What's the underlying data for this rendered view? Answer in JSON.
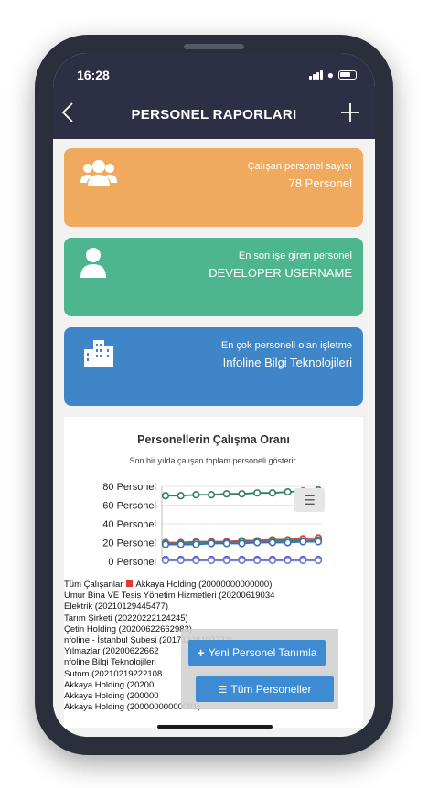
{
  "status_bar": {
    "time": "16:28"
  },
  "nav": {
    "title": "PERSONEL RAPORLARI",
    "back_icon": "chevron-left-icon",
    "add_icon": "plus-icon"
  },
  "cards": {
    "employees": {
      "label": "Çalışan personel sayısı",
      "value": "78 Personel",
      "icon": "users-icon",
      "color": "#f0aa5e"
    },
    "newest": {
      "label": "En son işe giren personel",
      "value": "DEVELOPER USERNAME",
      "icon": "user-icon",
      "color": "#4db68e"
    },
    "top_company": {
      "label": "En çok personeli olan işletme",
      "value": "Infoline Bilgi Teknolojileri",
      "icon": "buildings-icon",
      "color": "#3f86c8"
    }
  },
  "chart": {
    "title": "Personellerin Çalışma Oranı",
    "subtitle": "Son bir yılda çalışan toplam personeli gösterir.",
    "menu_icon": "hamburger-menu-icon"
  },
  "chart_data": {
    "type": "line",
    "yaxis_ticks": [
      "80 Personel",
      "60 Personel",
      "40 Personel",
      "20 Personel",
      "0 Personel"
    ],
    "ylim": [
      0,
      80
    ],
    "grid": true,
    "legend_placement": "bottom",
    "series": [
      {
        "name": "Tüm Çalışanlar",
        "color": "#2e7d64",
        "values": [
          70,
          70,
          71,
          71,
          72,
          72,
          73,
          73,
          74,
          75,
          76
        ]
      },
      {
        "name": "Akkaya Holding (20000000000000)",
        "color": "#e53935",
        "values": [
          20,
          20,
          21,
          21,
          21,
          22,
          22,
          23,
          23,
          24,
          25
        ]
      },
      {
        "name": "Umur Bina VE Tesis Yönetim Hizmetleri (20200619034)",
        "values": [
          19,
          19,
          20,
          20,
          20,
          21,
          21,
          21,
          22,
          22,
          23
        ]
      },
      {
        "name": "Elektrik (20210129445477)",
        "values": [
          18,
          18,
          18,
          19,
          19,
          19,
          20,
          20,
          20,
          21,
          21
        ]
      },
      {
        "name": "Tarım Şirketi (20220222124245)",
        "values": [
          2,
          2,
          2,
          2,
          2,
          2,
          2,
          2,
          2,
          2,
          2
        ]
      },
      {
        "name": "Çetin Holding (20200622662983)",
        "values": [
          1,
          1,
          1,
          1,
          1,
          1,
          1,
          1,
          1,
          1,
          1
        ]
      }
    ]
  },
  "legend": {
    "rows": [
      "Tüm Çalışanlar",
      "Umur Bina VE Tesis Yönetim Hizmetleri (20200619034",
      "Elektrik (20210129445477)",
      "Tarım Şirketi (20220222124245)",
      "Çetin Holding (20200622662983)",
      "nfoline - İstanbul Şubesi (20171228102733)",
      "Yılmazlar (20200622662",
      "nfoline Bilgi Teknolojileri",
      "Sutom (20210219222108",
      "Akkaya Holding (20200",
      "Akkaya Holding (200000",
      "Akkaya Holding (20000000000001)"
    ],
    "first_row_second": "Akkaya Holding (20000000000000)"
  },
  "actions": {
    "new_personnel": "Yeni Personel Tanımla",
    "all_personnel": "Tüm Personeller"
  }
}
